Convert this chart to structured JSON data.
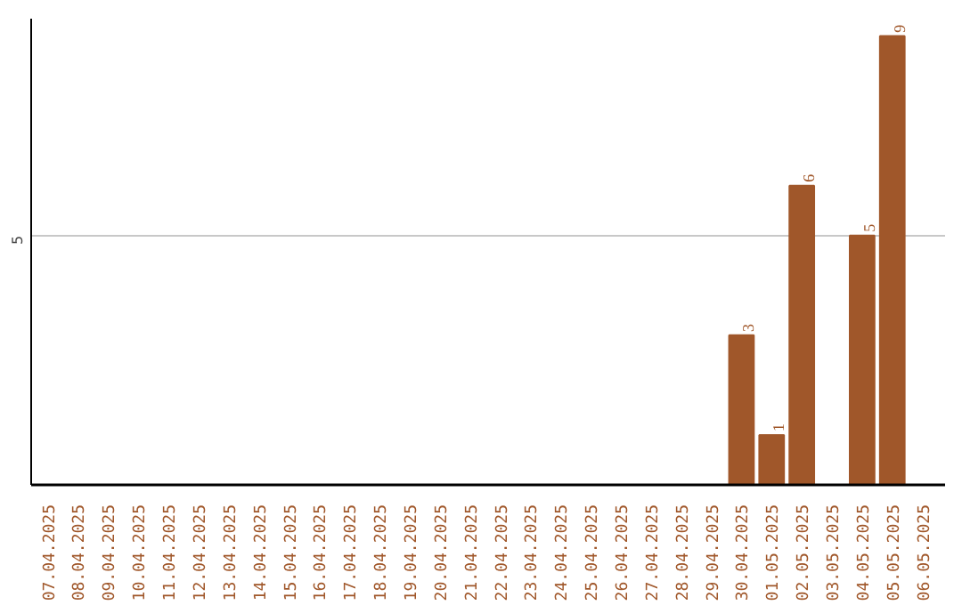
{
  "chart_data": {
    "type": "bar",
    "categories": [
      "07.04.2025",
      "08.04.2025",
      "09.04.2025",
      "10.04.2025",
      "11.04.2025",
      "12.04.2025",
      "13.04.2025",
      "14.04.2025",
      "15.04.2025",
      "16.04.2025",
      "17.04.2025",
      "18.04.2025",
      "19.04.2025",
      "20.04.2025",
      "21.04.2025",
      "22.04.2025",
      "23.04.2025",
      "24.04.2025",
      "25.04.2025",
      "26.04.2025",
      "27.04.2025",
      "28.04.2025",
      "29.04.2025",
      "30.04.2025",
      "01.05.2025",
      "02.05.2025",
      "03.05.2025",
      "04.05.2025",
      "05.05.2025",
      "06.05.2025"
    ],
    "values": [
      null,
      null,
      null,
      null,
      null,
      null,
      null,
      null,
      null,
      null,
      null,
      null,
      null,
      null,
      null,
      null,
      null,
      null,
      null,
      null,
      null,
      null,
      null,
      3,
      1,
      6,
      null,
      5,
      9,
      null
    ],
    "value_labels": [
      null,
      null,
      null,
      null,
      null,
      null,
      null,
      null,
      null,
      null,
      null,
      null,
      null,
      null,
      null,
      null,
      null,
      null,
      null,
      null,
      null,
      null,
      null,
      "3",
      "1",
      "6",
      null,
      "5",
      "9",
      null
    ],
    "color": "#a0572a",
    "ylim": [
      0,
      9.35
    ],
    "yticks": [
      {
        "value": 0,
        "label": null
      },
      5
    ],
    "grid": "y"
  }
}
